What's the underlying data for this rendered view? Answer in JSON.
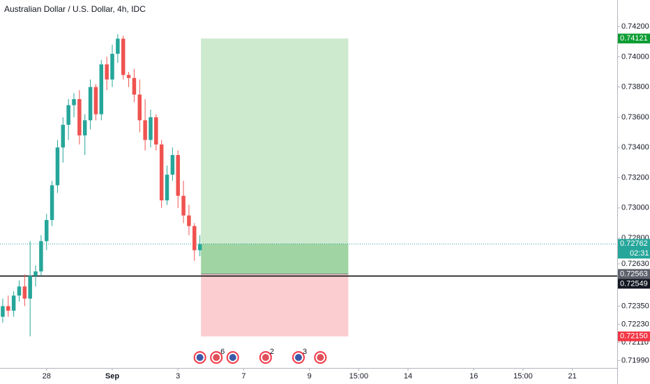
{
  "chart_data": {
    "type": "candlestick",
    "title": "Australian Dollar / U.S. Dollar, 4h, IDC",
    "up_color": "#26a69a",
    "down_color": "#ef5350",
    "open": [
      0.7228,
      0.7235,
      0.7232,
      0.7242,
      0.7248,
      0.724,
      0.7255,
      0.7258,
      0.7278,
      0.7292,
      0.7315,
      0.734,
      0.7355,
      0.7368,
      0.7372,
      0.7348,
      0.7358,
      0.738,
      0.7362,
      0.7395,
      0.7385,
      0.7402,
      0.7412,
      0.7388,
      0.7386,
      0.7375,
      0.7358,
      0.7345,
      0.736,
      0.7342,
      0.7305,
      0.7322,
      0.7335,
      0.7308,
      0.7295,
      0.7288,
      0.7272
    ],
    "high": [
      0.724,
      0.7242,
      0.7245,
      0.7252,
      0.7256,
      0.7278,
      0.7262,
      0.7282,
      0.7296,
      0.7318,
      0.7345,
      0.736,
      0.7372,
      0.7376,
      0.7378,
      0.7362,
      0.7385,
      0.7382,
      0.7398,
      0.74,
      0.7408,
      0.7415,
      0.7414,
      0.739,
      0.7392,
      0.7385,
      0.7372,
      0.7365,
      0.7362,
      0.7345,
      0.7328,
      0.734,
      0.7338,
      0.7318,
      0.7302,
      0.729,
      0.7282
    ],
    "low": [
      0.7224,
      0.7228,
      0.7228,
      0.7238,
      0.7235,
      0.7215,
      0.7248,
      0.7255,
      0.7272,
      0.7288,
      0.731,
      0.733,
      0.7345,
      0.736,
      0.7342,
      0.7335,
      0.7352,
      0.7358,
      0.7358,
      0.7378,
      0.738,
      0.7396,
      0.7385,
      0.738,
      0.737,
      0.735,
      0.7338,
      0.734,
      0.7338,
      0.73,
      0.7302,
      0.7318,
      0.73,
      0.729,
      0.7282,
      0.7265,
      0.7268
    ],
    "close": [
      0.7235,
      0.7232,
      0.7242,
      0.7248,
      0.724,
      0.7255,
      0.7258,
      0.7278,
      0.7292,
      0.7315,
      0.734,
      0.7355,
      0.7368,
      0.7372,
      0.7348,
      0.7358,
      0.738,
      0.7362,
      0.7395,
      0.7385,
      0.7402,
      0.7412,
      0.7388,
      0.7386,
      0.7375,
      0.7358,
      0.7345,
      0.736,
      0.7342,
      0.7305,
      0.7322,
      0.7335,
      0.7308,
      0.7295,
      0.7288,
      0.7272,
      0.7276
    ],
    "xlim": [
      -0.5,
      112.2
    ],
    "xticks": [
      {
        "value": 8,
        "label": "28"
      },
      {
        "value": 20,
        "label": "Sep"
      },
      {
        "value": 32,
        "label": "3"
      },
      {
        "value": 44,
        "label": "7"
      },
      {
        "value": 56,
        "label": "9"
      },
      {
        "value": 65,
        "label": "15:00"
      },
      {
        "value": 74,
        "label": "14"
      },
      {
        "value": 86,
        "label": "16"
      },
      {
        "value": 95,
        "label": "15:00"
      },
      {
        "value": 104,
        "label": "21"
      }
    ],
    "ylim": [
      0.71941,
      0.74376
    ],
    "yticks": [
      {
        "value": 0.742,
        "label": "0.74200"
      },
      {
        "value": 0.74,
        "label": "0.74000"
      },
      {
        "value": 0.738,
        "label": "0.73800"
      },
      {
        "value": 0.736,
        "label": "0.73600"
      },
      {
        "value": 0.734,
        "label": "0.73400"
      },
      {
        "value": 0.732,
        "label": "0.73200"
      },
      {
        "value": 0.73,
        "label": "0.73000"
      },
      {
        "value": 0.728,
        "label": "0.72800"
      },
      {
        "value": 0.7263,
        "label": "0.72630"
      },
      {
        "value": 0.7235,
        "label": "0.72350"
      },
      {
        "value": 0.7223,
        "label": "0.72230"
      },
      {
        "value": 0.7211,
        "label": "0.72110"
      },
      {
        "value": 0.7199,
        "label": "0.71990"
      }
    ],
    "position": {
      "target": 0.74121,
      "entry": 0.72563,
      "stop": 0.7215,
      "current": 0.72762,
      "start": 36.2,
      "end": 63.1
    },
    "line_level": 0.72549,
    "price_labels": [
      {
        "value": 0.74121,
        "color": "#0c9d33"
      },
      {
        "value": 0.72762,
        "color": "#26a69a",
        "countdown": "02:31"
      },
      {
        "value": 0.72563,
        "color": "#5d606b"
      },
      {
        "value": 0.72549,
        "color": "#131722"
      },
      {
        "value": 0.7215,
        "label": "0.72150",
        "color": "#f23645"
      }
    ],
    "events": [
      {
        "x": 36
      },
      {
        "x": 39,
        "count": 6
      },
      {
        "x": 42
      },
      {
        "x": 48,
        "count": 2
      },
      {
        "x": 54,
        "count": 3
      },
      {
        "x": 58
      }
    ]
  }
}
